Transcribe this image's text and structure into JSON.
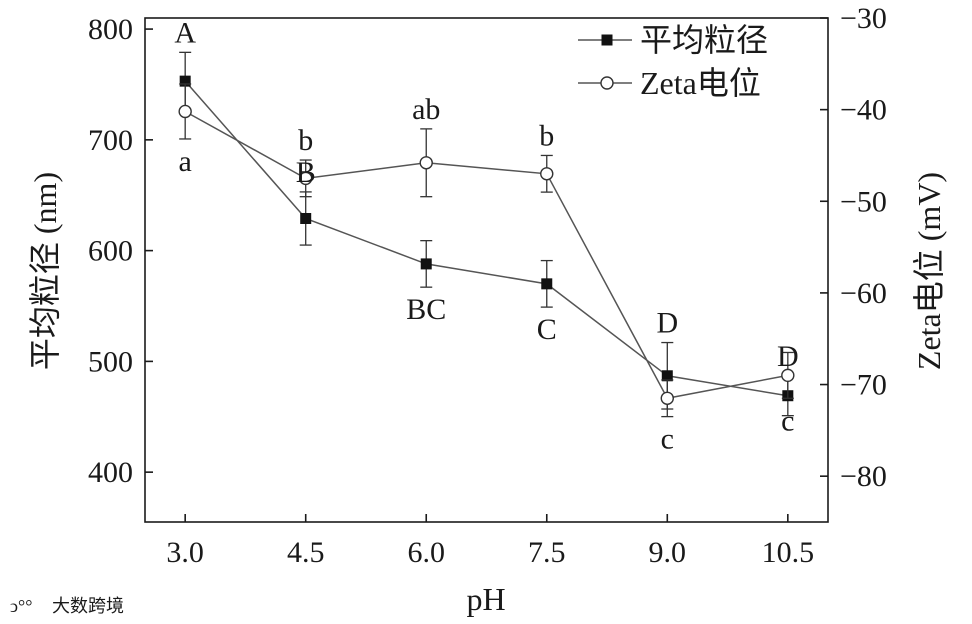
{
  "chart_data": {
    "type": "line",
    "x": [
      3.0,
      4.5,
      6.0,
      7.5,
      9.0,
      10.5
    ],
    "x_tick_labels": [
      "3.0",
      "4.5",
      "6.0",
      "7.5",
      "9.0",
      "10.5"
    ],
    "xlabel": "pH",
    "ylabel_left": "平均粒径 (nm)",
    "ylabel_right": "Zeta电位 (mV)",
    "ylim_left": [
      355,
      810
    ],
    "yticks_left": [
      400,
      500,
      600,
      700,
      800
    ],
    "ylim_right": [
      -85,
      -30
    ],
    "yticks_right": [
      -30,
      -40,
      -50,
      -60,
      -70,
      -80
    ],
    "ytick_labels_right": [
      "−30",
      "−40",
      "−50",
      "−60",
      "−70",
      "−80"
    ],
    "legend_position": "top-right",
    "series": [
      {
        "name": "平均粒径",
        "axis": "left",
        "marker": "filled-square",
        "values": [
          753,
          629,
          588,
          570,
          487,
          469
        ],
        "errors": [
          26,
          24,
          21,
          21,
          30,
          18
        ],
        "labels": [
          "A",
          "B",
          "BC",
          "C",
          "D",
          "D"
        ]
      },
      {
        "name": "Zeta电位",
        "axis": "right",
        "marker": "open-circle",
        "values": [
          -40.2,
          -47.5,
          -45.8,
          -47.0,
          -71.5,
          -69.0
        ],
        "errors": [
          3.0,
          2.0,
          3.7,
          2.0,
          2.0,
          2.5
        ],
        "labels": [
          "a",
          "b",
          "ab",
          "b",
          "c",
          "c"
        ]
      }
    ]
  },
  "watermark": "大数跨境"
}
